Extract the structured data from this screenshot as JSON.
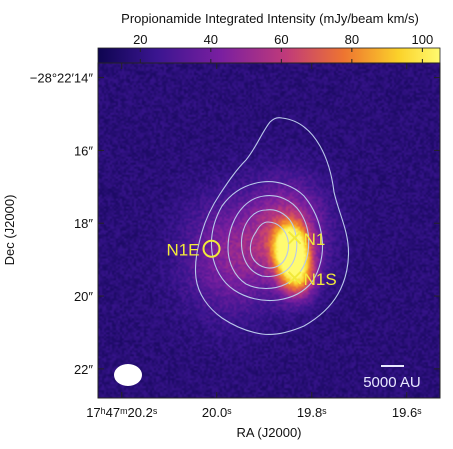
{
  "chart_data": {
    "type": "heatmap",
    "colorbar": {
      "title": "Propionamide Integrated Intensity (mJy/beam km/s)",
      "range": [
        8,
        105
      ],
      "ticks": [
        {
          "value": 20,
          "label": "20"
        },
        {
          "value": 40,
          "label": "40"
        },
        {
          "value": 60,
          "label": "60"
        },
        {
          "value": 80,
          "label": "80"
        },
        {
          "value": 100,
          "label": "100"
        }
      ],
      "colormap": [
        "#0e0550",
        "#3a1590",
        "#7a1fa0",
        "#c03a7a",
        "#ee7530",
        "#fbd22a",
        "#fffb70"
      ]
    },
    "xlabel": "RA (J2000)",
    "ylabel": "Dec (J2000)",
    "x_range_sec": [
      20.25,
      19.53
    ],
    "y_range_arcsec": [
      13.6,
      22.8
    ],
    "x_ticks": [
      {
        "value": 20.2,
        "label": "17ʰ47ᵐ20.2ˢ"
      },
      {
        "value": 20.0,
        "label": "20.0ˢ"
      },
      {
        "value": 19.8,
        "label": "19.8ˢ"
      },
      {
        "value": 19.6,
        "label": "19.6ˢ"
      }
    ],
    "y_ticks": [
      {
        "value": 14,
        "label": "−28°22′14″"
      },
      {
        "value": 16,
        "label": "16″"
      },
      {
        "value": 18,
        "label": "18″"
      },
      {
        "value": 20,
        "label": "20″"
      },
      {
        "value": 22,
        "label": "22″"
      }
    ],
    "sources": [
      {
        "name": "N1",
        "marker": "cross",
        "ra_sec": 19.836,
        "dec_arcsec": 18.4,
        "color": "#f2ea3a"
      },
      {
        "name": "N1S",
        "marker": "cross",
        "ra_sec": 19.836,
        "dec_arcsec": 19.5,
        "color": "#f2ea3a"
      },
      {
        "name": "N1E",
        "marker": "circle",
        "ra_sec": 20.011,
        "dec_arcsec": 18.7,
        "color": "#f2ea3a"
      }
    ],
    "emission_components": [
      {
        "ra_sec": 19.845,
        "dec_arcsec": 18.7,
        "peak": 100,
        "sigma_ra": 0.022,
        "sigma_dec": 0.42
      },
      {
        "ra_sec": 19.83,
        "dec_arcsec": 19.4,
        "peak": 60,
        "sigma_ra": 0.025,
        "sigma_dec": 0.45
      },
      {
        "ra_sec": 19.85,
        "dec_arcsec": 18.2,
        "peak": 35,
        "sigma_ra": 0.055,
        "sigma_dec": 0.9
      },
      {
        "ra_sec": 19.97,
        "dec_arcsec": 18.9,
        "peak": 25,
        "sigma_ra": 0.07,
        "sigma_dec": 1.1
      }
    ],
    "background_level": 18,
    "contour_color": "#b9c8ea",
    "beam_color": "#ffffff",
    "scalebar": {
      "label": "5000 AU",
      "color": "#e8e8ff"
    },
    "grid": false
  }
}
